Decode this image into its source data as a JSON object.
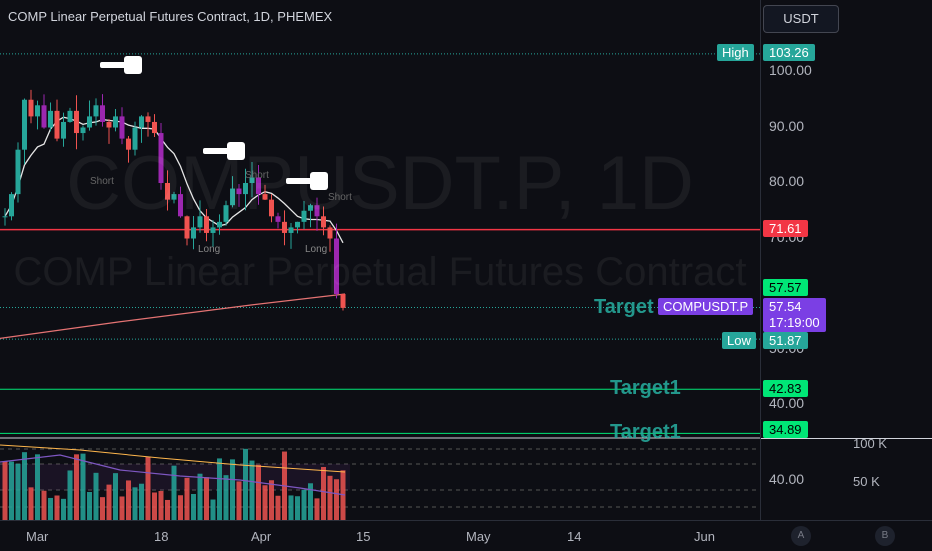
{
  "header": {
    "title": "COMP Linear Perpetual Futures Contract, 1D, PHEMEX"
  },
  "currency_button": "USDT",
  "watermark": {
    "symbol": "COMPUSDT.P, 1D",
    "description": "COMP Linear Perpetual Futures Contract"
  },
  "price_axis": {
    "ticks": [
      "100.00",
      "90.00",
      "80.00",
      "70.00",
      "50.00",
      "40.00"
    ]
  },
  "volume_axis": {
    "ticks": [
      "100 K",
      "50 K"
    ],
    "indicator_tick": "40.00"
  },
  "markers": {
    "high": {
      "label": "High",
      "value": "103.26"
    },
    "low": {
      "label": "Low",
      "value": "51.87"
    },
    "resistance": {
      "value": "71.61"
    },
    "target0": {
      "value": "57.57",
      "label": "Target"
    },
    "current": {
      "symbol": "COMPUSDT.P",
      "price": "57.54",
      "countdown": "17:19:00"
    },
    "target1": {
      "value": "42.83",
      "label": "Target1"
    },
    "target2": {
      "value": "34.89",
      "label": "Target1"
    }
  },
  "annotations": {
    "long_labels": [
      "Long",
      "Long"
    ],
    "short_labels": [
      "Short",
      "Short",
      "Short"
    ]
  },
  "time_axis": {
    "labels": [
      "Mar",
      "18",
      "Apr",
      "15",
      "May",
      "14",
      "Jun"
    ]
  },
  "scale_buttons": [
    "A",
    "B"
  ],
  "colors": {
    "up": "#26a69a",
    "down": "#ef5350",
    "indicator": "#9c27b0",
    "resistance": "#f23645",
    "target": "#00e676"
  }
}
